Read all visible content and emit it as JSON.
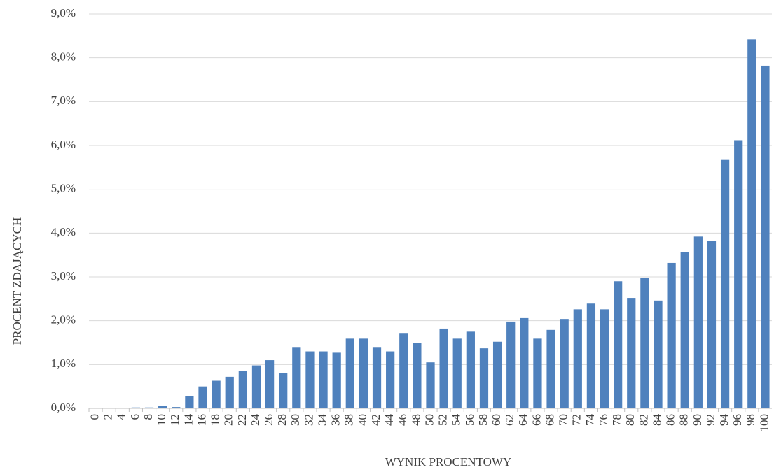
{
  "chart_data": {
    "type": "bar",
    "x_label": "WYNIK PROCENTOWY",
    "y_label": "PROCENT ZDAJĄCYCH",
    "categories": [
      "0",
      "2",
      "4",
      "6",
      "8",
      "10",
      "12",
      "14",
      "16",
      "18",
      "20",
      "22",
      "24",
      "26",
      "28",
      "30",
      "32",
      "34",
      "36",
      "38",
      "40",
      "42",
      "44",
      "46",
      "48",
      "50",
      "52",
      "54",
      "56",
      "58",
      "60",
      "62",
      "64",
      "66",
      "68",
      "70",
      "72",
      "74",
      "76",
      "78",
      "80",
      "82",
      "84",
      "86",
      "88",
      "90",
      "92",
      "94",
      "96",
      "98",
      "100"
    ],
    "values": [
      0.0,
      0.0,
      0.0,
      0.02,
      0.02,
      0.05,
      0.03,
      0.28,
      0.5,
      0.63,
      0.72,
      0.85,
      0.98,
      1.1,
      0.8,
      1.4,
      1.3,
      1.3,
      1.27,
      1.59,
      1.59,
      1.4,
      1.3,
      1.72,
      1.5,
      1.05,
      1.82,
      1.59,
      1.75,
      1.37,
      1.52,
      1.98,
      2.06,
      1.59,
      1.79,
      2.04,
      2.26,
      2.39,
      2.26,
      2.9,
      2.52,
      2.97,
      2.46,
      3.32,
      3.57,
      3.92,
      3.82,
      5.67,
      6.12,
      8.42,
      7.82
    ],
    "color": "#4f81bd",
    "ylim": [
      0,
      9
    ],
    "yticks": [
      {
        "value": 0,
        "label": "0,0%"
      },
      {
        "value": 1,
        "label": "1,0%"
      },
      {
        "value": 2,
        "label": "2,0%"
      },
      {
        "value": 3,
        "label": "3,0%"
      },
      {
        "value": 4,
        "label": "4,0%"
      },
      {
        "value": 5,
        "label": "5,0%"
      },
      {
        "value": 6,
        "label": "6,0%"
      },
      {
        "value": 7,
        "label": "7,0%"
      },
      {
        "value": 8,
        "label": "8,0%"
      },
      {
        "value": 9,
        "label": "9,0%"
      }
    ],
    "grid": true
  }
}
